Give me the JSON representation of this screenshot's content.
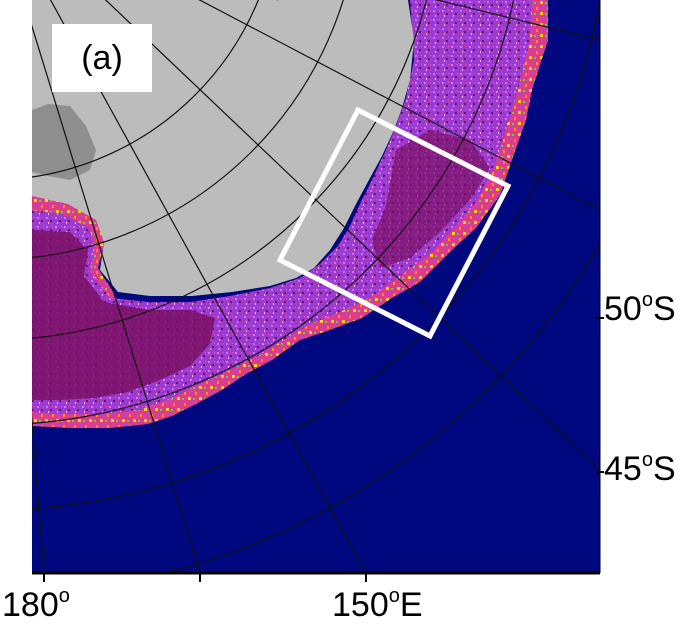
{
  "figure": {
    "panel_label": "(a)"
  },
  "axes": {
    "lat_50": {
      "value": "50",
      "deg": "o",
      "hemi": "S"
    },
    "lat_45": {
      "value": "45",
      "deg": "o",
      "hemi": "S"
    },
    "lon_180": {
      "value": "180",
      "deg": "o",
      "hemi": ""
    },
    "lon_150": {
      "value": "150",
      "deg": "o",
      "hemi": "E"
    }
  },
  "colors": {
    "ocean": "#00087f",
    "antarctica": "#bcbcbc",
    "ice_shelf": "#909090",
    "high_concentration": "#7a0f63",
    "medium_concentration": "#a64dd8",
    "low_concentration": "#ffd21a",
    "edge_concentration": "#3fe04a",
    "graticule": "#111111",
    "study_area_box": "#ffffff"
  }
}
